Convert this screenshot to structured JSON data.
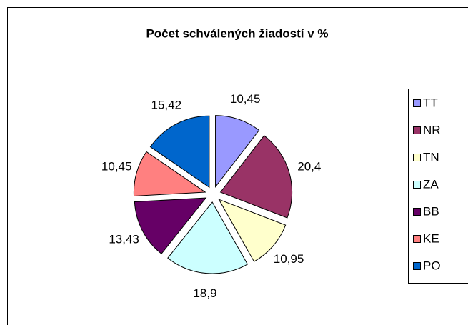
{
  "chart_data": {
    "type": "pie",
    "title": "Počet schválených žiadostí v %",
    "categories": [
      "TT",
      "NR",
      "TN",
      "ZA",
      "BB",
      "KE",
      "PO"
    ],
    "values": [
      10.45,
      20.4,
      10.95,
      18.9,
      13.43,
      10.45,
      15.42
    ],
    "value_labels": [
      "10,45",
      "20,4",
      "10,95",
      "18,9",
      "13,43",
      "10,45",
      "15,42"
    ],
    "colors": [
      "#9999ff",
      "#993366",
      "#ffffcc",
      "#ccffff",
      "#660066",
      "#ff8080",
      "#0066cc"
    ],
    "legend": "right"
  }
}
